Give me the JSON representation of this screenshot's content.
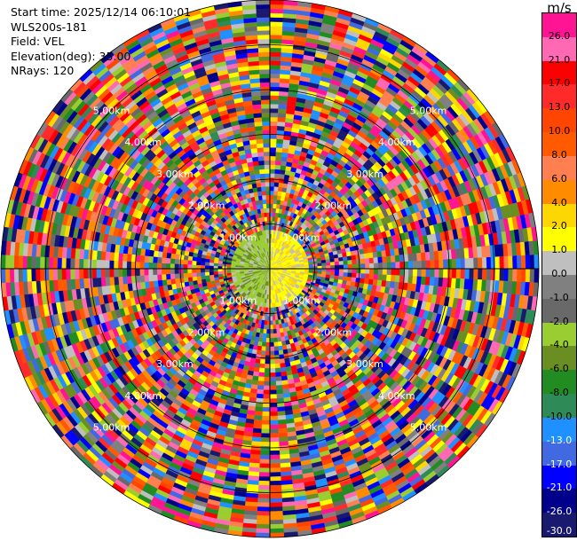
{
  "header": {
    "start_time": "Start time: 2025/12/14 06:10:01",
    "instrument": "WLS200s-181",
    "field": "Field: VEL",
    "elevation": "Elevation(deg): 35.00",
    "nrays": "NRays: 120"
  },
  "colorbar": {
    "unit": "m/s",
    "ticks": [
      "26.0",
      "21.0",
      "17.0",
      "13.0",
      "10.0",
      "8.0",
      "6.0",
      "4.0",
      "2.0",
      "1.0",
      "0.0",
      "-1.0",
      "-2.0",
      "-4.0",
      "-6.0",
      "-8.0",
      "-10.0",
      "-13.0",
      "-17.0",
      "-21.0",
      "-26.0",
      "-30.0"
    ],
    "colors": [
      "#ff1493",
      "#ff69b4",
      "#ff0000",
      "#ff2a2a",
      "#ff4500",
      "#ff5a00",
      "#ff7f50",
      "#ff8c00",
      "#ffd700",
      "#ffff00",
      "#bfbfbf",
      "#808080",
      "#696969",
      "#9acd32",
      "#6b8e23",
      "#228b22",
      "#2e8b57",
      "#1e90ff",
      "#4169e1",
      "#0000ff",
      "#00008b",
      "#191970"
    ]
  },
  "chart_data": {
    "type": "ppi",
    "field": "VEL",
    "units": "m/s",
    "elevation_deg": 35.0,
    "nrays": 120,
    "range_rings_km": [
      1.0,
      2.0,
      3.0,
      4.0,
      5.0
    ],
    "ring_labels": [
      "1.00km",
      "2.00km",
      "3.00km",
      "4.00km",
      "5.00km"
    ],
    "color_levels": [
      -30.0,
      -26.0,
      -21.0,
      -17.0,
      -13.0,
      -10.0,
      -8.0,
      -6.0,
      -4.0,
      -2.0,
      -1.0,
      0.0,
      1.0,
      2.0,
      4.0,
      6.0,
      8.0,
      10.0,
      13.0,
      17.0,
      21.0,
      26.0
    ],
    "max_range_km": 6.0,
    "grid": true
  }
}
